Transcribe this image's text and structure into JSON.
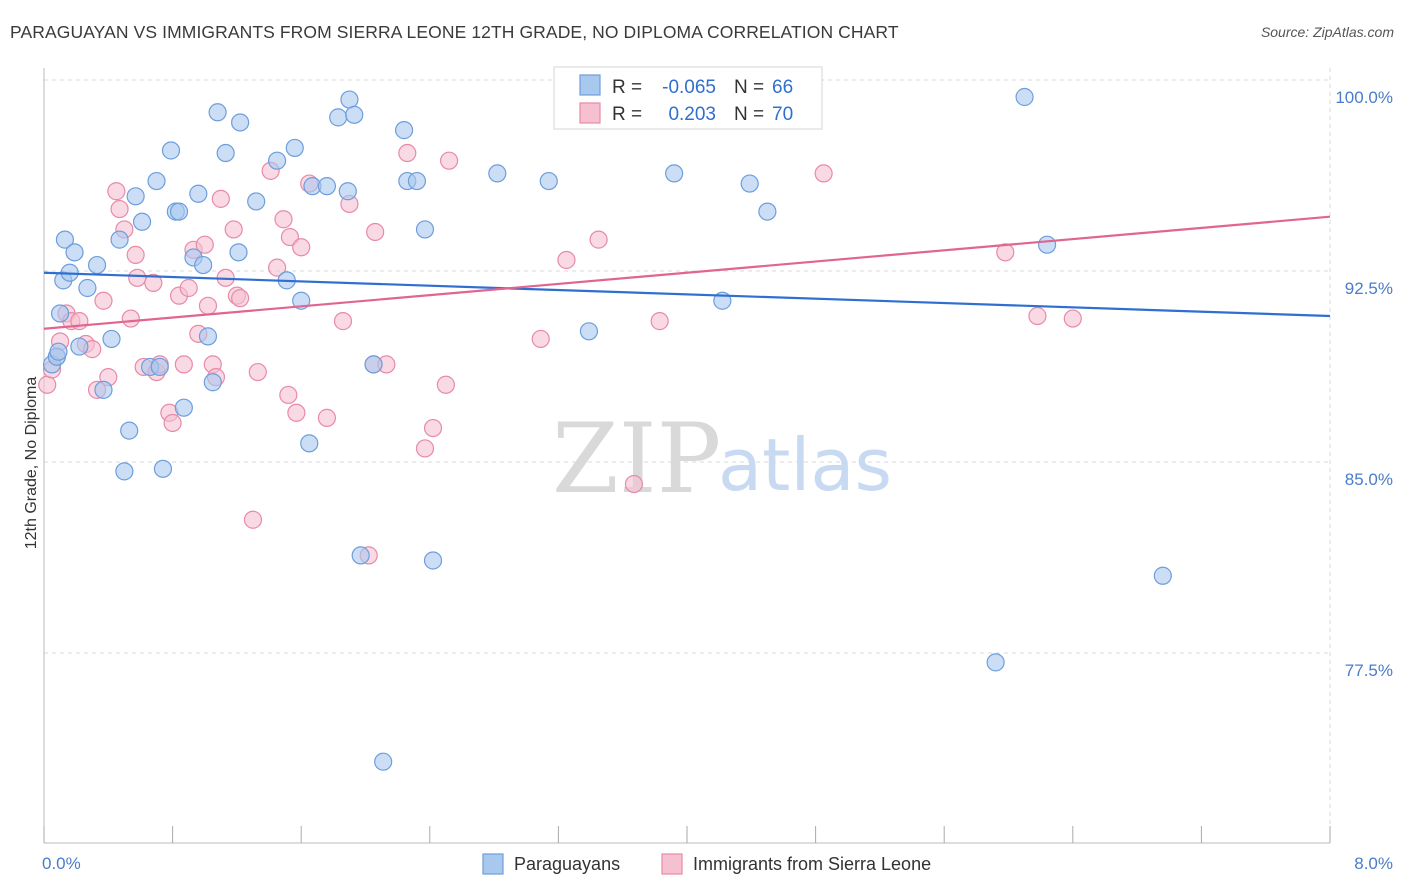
{
  "header": {
    "title": "PARAGUAYAN VS IMMIGRANTS FROM SIERRA LEONE 12TH GRADE, NO DIPLOMA CORRELATION CHART",
    "source": "Source: ZipAtlas.com"
  },
  "watermark": {
    "zip": "ZIP",
    "atlas": "atlas"
  },
  "legend": {
    "rows": [
      {
        "r_label": "R =",
        "r_value": "-0.065",
        "n_label": "N =",
        "n_value": "66"
      },
      {
        "r_label": "R =",
        "r_value": "0.203",
        "n_label": "N =",
        "n_value": "70"
      }
    ]
  },
  "bottom_legend": [
    "Paraguayans",
    "Immigrants from Sierra Leone"
  ],
  "colors": {
    "blue_fill": "#a9c8ee",
    "blue_stroke": "#6d9edc",
    "blue_line": "#2f6fd0",
    "pink_fill": "#f5c0d0",
    "pink_stroke": "#e88aa8",
    "pink_line": "#e06590",
    "grid": "#d9d9d9",
    "tick_text": "#4a7dc8"
  },
  "chart_data": {
    "type": "scatter",
    "title": "PARAGUAYAN VS IMMIGRANTS FROM SIERRA LEONE 12TH GRADE, NO DIPLOMA CORRELATION CHART",
    "xlabel": "",
    "ylabel": "12th Grade, No Diploma",
    "xlim": [
      0.0,
      8.0
    ],
    "ylim": [
      70.0,
      100.6
    ],
    "x_tick_labels": [
      "0.0%",
      "8.0%"
    ],
    "y_ticks": [
      100.0,
      92.5,
      85.0,
      77.5
    ],
    "y_tick_labels": [
      "100.0%",
      "92.5%",
      "85.0%",
      "77.5%"
    ],
    "grid": true,
    "legend_position": "top-center",
    "series": [
      {
        "name": "Paraguayans",
        "r": -0.065,
        "n": 66,
        "trend": {
          "x": [
            0.0,
            8.0
          ],
          "y": [
            93.1,
            91.4
          ]
        },
        "points": [
          [
            0.05,
            89.5
          ],
          [
            0.08,
            89.8
          ],
          [
            0.1,
            91.5
          ],
          [
            0.12,
            92.8
          ],
          [
            0.13,
            94.4
          ],
          [
            0.16,
            93.1
          ],
          [
            0.19,
            93.9
          ],
          [
            0.22,
            90.2
          ],
          [
            0.27,
            92.5
          ],
          [
            0.33,
            93.4
          ],
          [
            0.37,
            88.5
          ],
          [
            0.42,
            90.5
          ],
          [
            0.47,
            94.4
          ],
          [
            0.5,
            85.3
          ],
          [
            0.53,
            86.9
          ],
          [
            0.57,
            96.1
          ],
          [
            0.61,
            95.1
          ],
          [
            0.66,
            89.4
          ],
          [
            0.7,
            96.7
          ],
          [
            0.72,
            89.4
          ],
          [
            0.74,
            85.4
          ],
          [
            0.79,
            97.9
          ],
          [
            0.82,
            95.5
          ],
          [
            0.84,
            95.5
          ],
          [
            0.87,
            87.8
          ],
          [
            0.93,
            93.7
          ],
          [
            0.96,
            96.2
          ],
          [
            0.99,
            93.4
          ],
          [
            1.02,
            90.6
          ],
          [
            1.05,
            88.8
          ],
          [
            1.08,
            99.4
          ],
          [
            1.13,
            97.8
          ],
          [
            1.21,
            93.9
          ],
          [
            1.22,
            99.0
          ],
          [
            1.32,
            95.9
          ],
          [
            1.45,
            97.5
          ],
          [
            1.51,
            92.8
          ],
          [
            1.56,
            98.0
          ],
          [
            1.6,
            92.0
          ],
          [
            1.65,
            86.4
          ],
          [
            1.67,
            96.5
          ],
          [
            1.76,
            96.5
          ],
          [
            1.83,
            99.2
          ],
          [
            1.89,
            96.3
          ],
          [
            1.9,
            99.9
          ],
          [
            1.93,
            99.3
          ],
          [
            1.97,
            82.0
          ],
          [
            2.05,
            89.5
          ],
          [
            2.11,
            73.9
          ],
          [
            2.24,
            98.7
          ],
          [
            2.26,
            96.7
          ],
          [
            2.32,
            96.7
          ],
          [
            2.37,
            94.8
          ],
          [
            2.42,
            81.8
          ],
          [
            2.82,
            97.0
          ],
          [
            3.14,
            96.7
          ],
          [
            3.39,
            90.8
          ],
          [
            3.92,
            97.0
          ],
          [
            4.22,
            92.0
          ],
          [
            4.39,
            96.6
          ],
          [
            4.5,
            95.5
          ],
          [
            5.92,
            77.8
          ],
          [
            6.1,
            100.0
          ],
          [
            6.24,
            94.2
          ],
          [
            6.96,
            81.2
          ],
          [
            0.09,
            90.0
          ]
        ]
      },
      {
        "name": "Immigrants from Sierra Leone",
        "r": 0.203,
        "n": 70,
        "trend": {
          "x": [
            0.0,
            8.0
          ],
          "y": [
            90.9,
            95.3
          ]
        },
        "points": [
          [
            0.02,
            88.7
          ],
          [
            0.08,
            89.8
          ],
          [
            0.1,
            90.4
          ],
          [
            0.14,
            91.5
          ],
          [
            0.17,
            91.2
          ],
          [
            0.22,
            91.2
          ],
          [
            0.26,
            90.3
          ],
          [
            0.3,
            90.1
          ],
          [
            0.33,
            88.5
          ],
          [
            0.37,
            92.0
          ],
          [
            0.4,
            89.0
          ],
          [
            0.45,
            96.3
          ],
          [
            0.47,
            95.6
          ],
          [
            0.5,
            94.8
          ],
          [
            0.54,
            91.3
          ],
          [
            0.57,
            93.8
          ],
          [
            0.58,
            92.9
          ],
          [
            0.62,
            89.4
          ],
          [
            0.68,
            92.7
          ],
          [
            0.7,
            89.2
          ],
          [
            0.72,
            89.5
          ],
          [
            0.78,
            87.6
          ],
          [
            0.8,
            87.2
          ],
          [
            0.84,
            92.2
          ],
          [
            0.87,
            89.5
          ],
          [
            0.9,
            92.5
          ],
          [
            0.93,
            94.0
          ],
          [
            0.96,
            90.7
          ],
          [
            1.0,
            94.2
          ],
          [
            1.02,
            91.8
          ],
          [
            1.05,
            89.5
          ],
          [
            1.07,
            89.0
          ],
          [
            1.1,
            96.0
          ],
          [
            1.13,
            92.9
          ],
          [
            1.18,
            94.8
          ],
          [
            1.2,
            92.2
          ],
          [
            1.22,
            92.1
          ],
          [
            1.3,
            83.4
          ],
          [
            1.33,
            89.2
          ],
          [
            1.41,
            97.1
          ],
          [
            1.45,
            93.3
          ],
          [
            1.49,
            95.2
          ],
          [
            1.52,
            88.3
          ],
          [
            1.53,
            94.5
          ],
          [
            1.57,
            87.6
          ],
          [
            1.6,
            94.1
          ],
          [
            1.65,
            96.6
          ],
          [
            1.76,
            87.4
          ],
          [
            1.86,
            91.2
          ],
          [
            1.9,
            95.8
          ],
          [
            2.02,
            82.0
          ],
          [
            2.05,
            89.5
          ],
          [
            2.06,
            94.7
          ],
          [
            2.13,
            89.5
          ],
          [
            2.26,
            97.8
          ],
          [
            2.37,
            86.2
          ],
          [
            2.42,
            87.0
          ],
          [
            2.5,
            88.7
          ],
          [
            2.52,
            97.5
          ],
          [
            3.09,
            90.5
          ],
          [
            3.25,
            93.6
          ],
          [
            3.45,
            94.4
          ],
          [
            3.67,
            84.8
          ],
          [
            3.83,
            91.2
          ],
          [
            4.52,
            100.0
          ],
          [
            4.85,
            97.0
          ],
          [
            5.98,
            93.9
          ],
          [
            6.18,
            91.4
          ],
          [
            6.4,
            91.3
          ],
          [
            0.05,
            89.3
          ]
        ]
      }
    ]
  }
}
